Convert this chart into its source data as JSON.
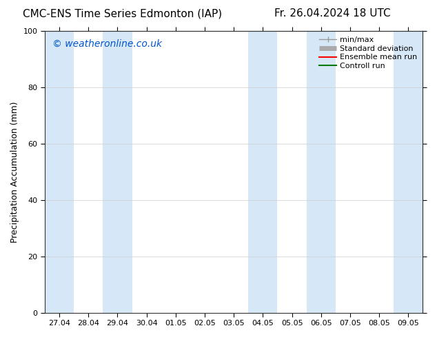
{
  "title_left": "CMC-ENS Time Series Edmonton (IAP)",
  "title_right": "Fr. 26.04.2024 18 UTC",
  "ylabel": "Precipitation Accumulation (mm)",
  "watermark": "© weatheronline.co.uk",
  "watermark_color": "#0055cc",
  "ylim": [
    0,
    100
  ],
  "yticks": [
    0,
    20,
    40,
    60,
    80,
    100
  ],
  "x_tick_labels": [
    "27.04",
    "28.04",
    "29.04",
    "30.04",
    "01.05",
    "02.05",
    "03.05",
    "04.05",
    "05.05",
    "06.05",
    "07.05",
    "08.05",
    "09.05"
  ],
  "x_tick_positions": [
    0,
    1,
    2,
    3,
    4,
    5,
    6,
    7,
    8,
    9,
    10,
    11,
    12
  ],
  "xlim": [
    -0.5,
    12.5
  ],
  "shaded_bands": [
    [
      0,
      1
    ],
    [
      2,
      3
    ],
    [
      7,
      8
    ],
    [
      9,
      10
    ],
    [
      12,
      13
    ]
  ],
  "shade_color": "#d6e8f7",
  "background_color": "#ffffff",
  "plot_bg_color": "#ffffff",
  "title_fontsize": 11,
  "axis_label_fontsize": 9,
  "tick_fontsize": 8,
  "watermark_fontsize": 10,
  "legend_fontsize": 8,
  "legend_items": [
    {
      "label": "min/max",
      "color": "#999999",
      "lw": 1.0
    },
    {
      "label": "Standard deviation",
      "color": "#aaaaaa",
      "lw": 5
    },
    {
      "label": "Ensemble mean run",
      "color": "#ff0000",
      "lw": 1.5
    },
    {
      "label": "Controll run",
      "color": "#007700",
      "lw": 1.5
    }
  ]
}
